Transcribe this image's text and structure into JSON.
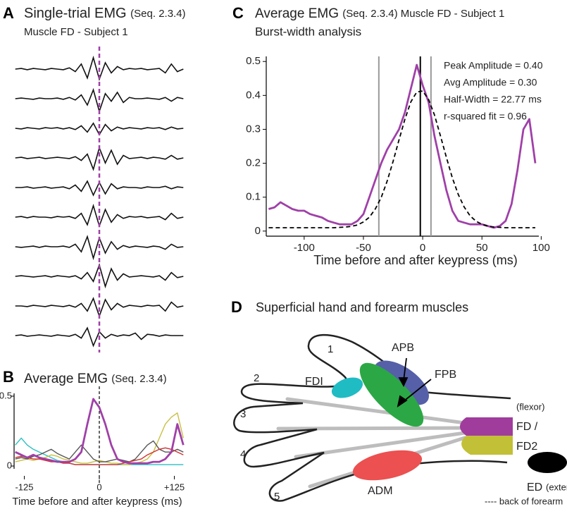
{
  "chart_data": [
    {
      "panel": "A",
      "type": "traces",
      "title": "Single-trial EMG",
      "title_note": "(Seq. 2.3.4)",
      "subtitle": "Muscle FD - Subject 1",
      "xlim": [
        -142,
        142
      ],
      "marker_x": 0,
      "marker_color": "#a040a8",
      "x": [
        -140,
        -130,
        -120,
        -110,
        -100,
        -90,
        -80,
        -70,
        -60,
        -50,
        -40,
        -30,
        -20,
        -10,
        0,
        10,
        20,
        30,
        40,
        50,
        60,
        70,
        80,
        90,
        100,
        110,
        120,
        130,
        140
      ],
      "series": [
        {
          "color": "#111111",
          "values": [
            0,
            0.05,
            -0.05,
            0.05,
            0,
            -0.05,
            0.05,
            0,
            -0.05,
            0.1,
            -0.2,
            0.4,
            -0.7,
            0.9,
            -0.8,
            0.5,
            -0.3,
            0.2,
            -0.05,
            0.05,
            0,
            0.05,
            -0.05,
            0,
            0.05,
            -0.3,
            0.4,
            -0.2,
            0
          ]
        },
        {
          "color": "#111111",
          "values": [
            0,
            0.05,
            0,
            -0.05,
            0.05,
            0,
            0,
            0.05,
            -0.05,
            0.1,
            -0.1,
            0.3,
            -0.5,
            0.7,
            -1,
            0.4,
            -0.2,
            0.5,
            -0.3,
            0.1,
            0,
            0,
            0.05,
            0,
            -0.05,
            0.1,
            -0.2,
            0.1,
            0
          ]
        },
        {
          "color": "#111111",
          "values": [
            0,
            -0.05,
            0.05,
            0,
            -0.05,
            0.05,
            0,
            0.05,
            -0.05,
            0.05,
            -0.1,
            0.2,
            -0.3,
            0.4,
            -0.5,
            0.3,
            -0.2,
            0.1,
            -0.05,
            0.05,
            0,
            -0.05,
            0.05,
            0,
            0.05,
            -0.1,
            0.1,
            -0.05,
            0
          ]
        },
        {
          "color": "#111111",
          "values": [
            0,
            0.05,
            -0.05,
            0,
            0.05,
            -0.05,
            0,
            0.05,
            0,
            -0.05,
            0.1,
            -0.2,
            0.3,
            -0.9,
            0.8,
            -0.4,
            0.6,
            -0.5,
            0.2,
            -0.05,
            0,
            0.05,
            -0.05,
            0.05,
            0,
            -0.1,
            0.2,
            -0.1,
            0
          ]
        },
        {
          "color": "#111111",
          "values": [
            0,
            0,
            0.05,
            -0.05,
            0,
            0.05,
            -0.05,
            0,
            0.05,
            -0.1,
            0.2,
            -0.3,
            0.5,
            -0.6,
            0.4,
            -0.5,
            0.3,
            -0.1,
            0.05,
            0,
            0,
            -0.05,
            0.05,
            0,
            0,
            0.1,
            -0.1,
            0.05,
            0
          ]
        },
        {
          "color": "#111111",
          "values": [
            0,
            0.05,
            -0.05,
            0.05,
            0,
            0,
            -0.05,
            0.05,
            0,
            0.05,
            -0.1,
            0.3,
            -0.6,
            0.9,
            -0.7,
            0.6,
            -0.4,
            0.2,
            -0.1,
            0.05,
            0,
            0.05,
            -0.05,
            0,
            0.05,
            -0.2,
            0.3,
            -0.1,
            0
          ]
        },
        {
          "color": "#111111",
          "values": [
            0,
            -0.05,
            0,
            0.05,
            -0.05,
            0.05,
            0,
            0,
            0.05,
            -0.05,
            0.2,
            -0.4,
            0.8,
            -0.9,
            0.7,
            -0.5,
            0.4,
            -0.2,
            0.1,
            -0.05,
            0.05,
            0,
            -0.05,
            0.05,
            0,
            -0.2,
            0.2,
            -0.05,
            0
          ]
        },
        {
          "color": "#111111",
          "values": [
            0,
            0.05,
            0,
            -0.05,
            0,
            0.05,
            -0.05,
            0.05,
            0,
            -0.05,
            0.05,
            -0.2,
            0.3,
            -0.4,
            0.9,
            -0.8,
            0.6,
            -0.3,
            0.2,
            -0.05,
            0,
            0.05,
            0,
            -0.05,
            0.05,
            -0.3,
            0.3,
            -0.1,
            0
          ]
        },
        {
          "color": "#111111",
          "values": [
            0,
            0,
            -0.05,
            0.05,
            0,
            -0.05,
            0.05,
            0,
            -0.05,
            0.05,
            -0.1,
            0.2,
            -0.4,
            0.6,
            -0.8,
            0.5,
            -0.3,
            0.2,
            -0.1,
            0.05,
            0,
            -0.05,
            0.05,
            0,
            0.05,
            -0.4,
            0.3,
            -0.1,
            0
          ]
        },
        {
          "color": "#111111",
          "values": [
            0,
            0.05,
            -0.05,
            0,
            0.05,
            0,
            -0.05,
            0.05,
            0,
            -0.05,
            0.1,
            -0.2,
            0.6,
            -0.8,
            0.3,
            -0.2,
            0.1,
            -0.05,
            0.05,
            0,
            0.2,
            -0.3,
            0.1,
            0.05,
            -0.05,
            0.05,
            0,
            0,
            0
          ]
        }
      ]
    },
    {
      "panel": "B",
      "type": "line",
      "title": "Average EMG",
      "title_note": "(Seq. 2.3.4)",
      "xlabel": "Time before and after keypress (ms)",
      "xlim": [
        -142,
        142
      ],
      "ylim": [
        -0.02,
        0.52
      ],
      "yticks": [
        0,
        0.5
      ],
      "xticks": [
        -125,
        0,
        {
          "value": 125,
          "label": "+125"
        }
      ],
      "marker_x": 0,
      "marker_color": "#000000",
      "x": [
        -140,
        -130,
        -120,
        -110,
        -100,
        -90,
        -80,
        -70,
        -60,
        -50,
        -40,
        -30,
        -20,
        -10,
        0,
        10,
        20,
        30,
        40,
        50,
        60,
        70,
        80,
        90,
        100,
        110,
        120,
        130,
        140
      ],
      "series": [
        {
          "color": "#2bbfc4",
          "values": [
            0.15,
            0.2,
            0.15,
            0.12,
            0.1,
            0.08,
            0.06,
            0.04,
            0.03,
            0.02,
            0.01,
            0.01,
            0.01,
            0.01,
            0.01,
            0.01,
            0.01,
            0.01,
            0.01,
            0.01,
            0.01,
            0.01,
            0.01,
            0.01,
            0.01,
            0.01,
            0.01,
            0.01,
            0.01
          ]
        },
        {
          "color": "#c8c040",
          "values": [
            0.03,
            0.04,
            0.05,
            0.04,
            0.05,
            0.06,
            0.08,
            0.07,
            0.05,
            0.04,
            0.03,
            0.02,
            0.02,
            0.03,
            0.04,
            0.03,
            0.02,
            0.02,
            0.01,
            0.01,
            0.02,
            0.03,
            0.05,
            0.1,
            0.2,
            0.3,
            0.35,
            0.38,
            0.2
          ]
        },
        {
          "color": "#555555",
          "values": [
            0.05,
            0.06,
            0.05,
            0.07,
            0.08,
            0.1,
            0.12,
            0.09,
            0.07,
            0.05,
            0.1,
            0.15,
            0.1,
            0.05,
            0.03,
            0.03,
            0.04,
            0.05,
            0.04,
            0.03,
            0.05,
            0.1,
            0.15,
            0.18,
            0.12,
            0.1,
            0.1,
            0.12,
            0.1
          ]
        },
        {
          "color": "#d03030",
          "values": [
            0.06,
            0.07,
            0.06,
            0.05,
            0.05,
            0.04,
            0.03,
            0.03,
            0.02,
            0.02,
            0.01,
            0.01,
            0.01,
            0.01,
            0.01,
            0.01,
            0.01,
            0.01,
            0.02,
            0.03,
            0.04,
            0.05,
            0.08,
            0.1,
            0.12,
            0.13,
            0.12,
            0.1,
            0.08
          ]
        },
        {
          "color": "#a040a8",
          "values": [
            0.1,
            0.08,
            0.06,
            0.08,
            0.06,
            0.05,
            0.04,
            0.03,
            0.03,
            0.03,
            0.05,
            0.1,
            0.3,
            0.48,
            0.42,
            0.3,
            0.15,
            0.05,
            0.03,
            0.02,
            0.02,
            0.02,
            0.02,
            0.03,
            0.03,
            0.05,
            0.1,
            0.3,
            0.15
          ]
        }
      ]
    },
    {
      "panel": "C",
      "type": "line",
      "title": "Average EMG",
      "title_note": "(Seq. 2.3.4)  Muscle FD - Subject 1",
      "subtitle": "Burst-width analysis",
      "xlabel": "Time before and after keypress (ms)",
      "annotations": [
        "Peak Amplitude = 0.40",
        "Avg Amplitude = 0.30",
        "Half-Width = 22.77 ms",
        "r-squared fit = 0.96"
      ],
      "xlim": [
        -132,
        98
      ],
      "ylim": [
        -0.015,
        0.515
      ],
      "xticks": [
        -100,
        -50,
        0,
        50,
        100
      ],
      "yticks": [
        0,
        0.1,
        0.2,
        0.3,
        0.4,
        0.5
      ],
      "vlines": [
        -37,
        -2,
        7
      ],
      "vline_colors": [
        "#999999",
        "#000000",
        "#999999"
      ],
      "x": [
        -130,
        -125,
        -120,
        -115,
        -110,
        -105,
        -100,
        -95,
        -90,
        -85,
        -80,
        -75,
        -70,
        -65,
        -60,
        -55,
        -50,
        -45,
        -40,
        -35,
        -30,
        -25,
        -20,
        -15,
        -10,
        -5,
        0,
        5,
        10,
        15,
        20,
        25,
        30,
        35,
        40,
        45,
        50,
        55,
        60,
        65,
        70,
        75,
        80,
        85,
        90,
        95
      ],
      "series": [
        {
          "color": "#a040a8",
          "style": "solid",
          "values": [
            0.065,
            0.07,
            0.085,
            0.075,
            0.065,
            0.06,
            0.06,
            0.05,
            0.045,
            0.04,
            0.03,
            0.025,
            0.02,
            0.02,
            0.02,
            0.03,
            0.05,
            0.1,
            0.15,
            0.2,
            0.24,
            0.27,
            0.3,
            0.35,
            0.42,
            0.49,
            0.43,
            0.38,
            0.28,
            0.2,
            0.12,
            0.06,
            0.03,
            0.025,
            0.02,
            0.02,
            0.02,
            0.015,
            0.01,
            0.015,
            0.03,
            0.08,
            0.18,
            0.3,
            0.33,
            0.2
          ]
        },
        {
          "color": "#000000",
          "style": "dashed",
          "values": [
            0.01,
            0.01,
            0.01,
            0.01,
            0.01,
            0.01,
            0.01,
            0.01,
            0.01,
            0.01,
            0.01,
            0.01,
            0.011,
            0.012,
            0.014,
            0.018,
            0.027,
            0.041,
            0.065,
            0.099,
            0.147,
            0.205,
            0.269,
            0.33,
            0.381,
            0.41,
            0.413,
            0.388,
            0.342,
            0.281,
            0.217,
            0.157,
            0.108,
            0.071,
            0.045,
            0.029,
            0.02,
            0.015,
            0.012,
            0.011,
            0.01,
            0.01,
            0.01,
            0.01,
            0.01,
            0.01
          ]
        }
      ]
    }
  ],
  "diagram": {
    "panel": "D",
    "title": "Superficial hand and forearm muscles",
    "fingers": [
      "1",
      "2",
      "3",
      "4",
      "5"
    ],
    "muscles": [
      "APB",
      "FPB",
      "FDI",
      "ADM",
      "FD /",
      "FD2",
      "ED"
    ],
    "notes": [
      "(flexor)",
      "(extensor)",
      "---- back of forearm"
    ]
  }
}
